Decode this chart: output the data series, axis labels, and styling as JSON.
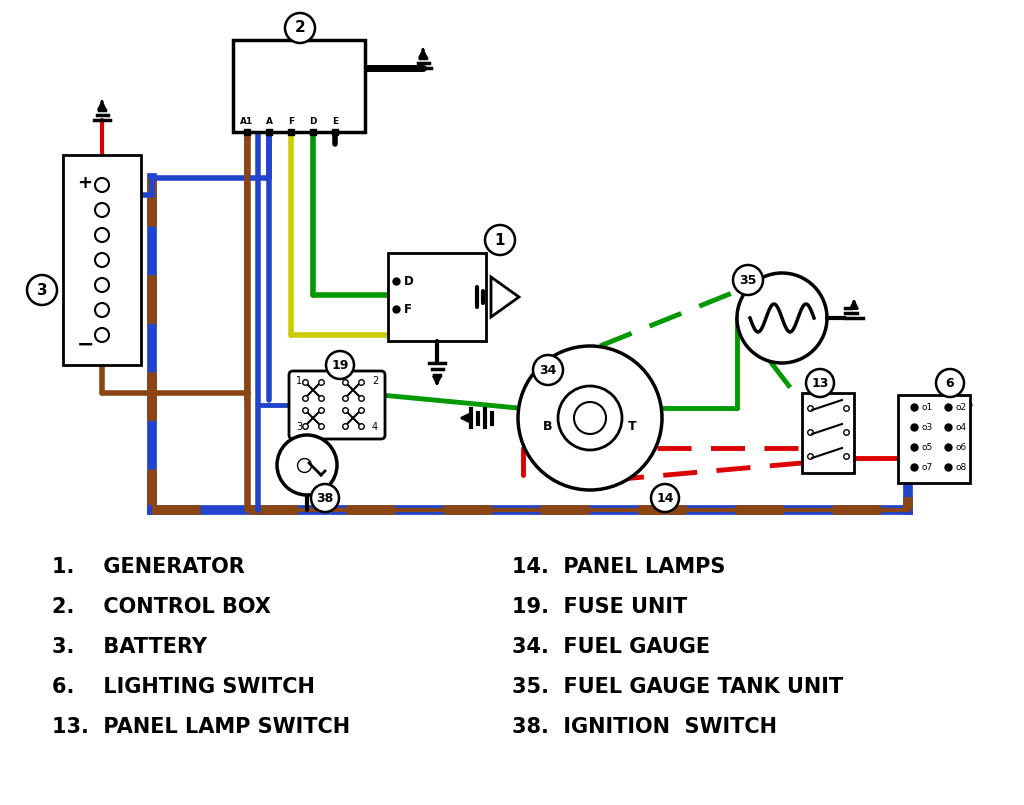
{
  "bg_color": "#ffffff",
  "legend_left": [
    "1.    GENERATOR",
    "2.    CONTROL BOX",
    "3.    BATTERY",
    "6.    LIGHTING SWITCH",
    "13.  PANEL LAMP SWITCH"
  ],
  "legend_right": [
    "14.  PANEL LAMPS",
    "19.  FUSE UNIT",
    "34.  FUEL GAUGE",
    "35.  FUEL GAUGE TANK UNIT",
    "38.  IGNITION  SWITCH"
  ],
  "blue": "#2244cc",
  "brown": "#8B4513",
  "green": "#009900",
  "red": "#dd0000",
  "yellow": "#cccc00",
  "black": "#000000",
  "dgreen": "#009900",
  "dred": "#cc0000",
  "white": "#ffffff"
}
